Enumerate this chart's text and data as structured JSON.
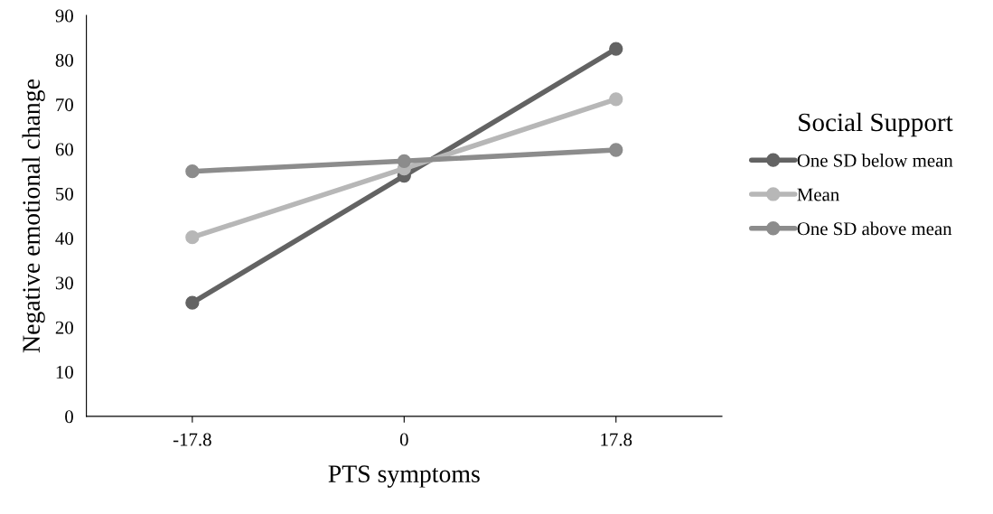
{
  "chart_data": {
    "type": "line",
    "xlabel": "PTS symptoms",
    "ylabel": "Negative emotional change",
    "legend_title": "Social Support",
    "categories": [
      "-17.8",
      "0",
      "17.8"
    ],
    "series": [
      {
        "name": "One SD below mean",
        "color": "#636363",
        "values": [
          25.5,
          54.0,
          82.5
        ]
      },
      {
        "name": "Mean",
        "color": "#b7b7b7",
        "values": [
          40.2,
          55.6,
          71.2
        ]
      },
      {
        "name": "One SD above mean",
        "color": "#8c8c8c",
        "values": [
          55.0,
          57.3,
          59.8
        ]
      }
    ],
    "ylim": [
      0,
      90
    ],
    "yticks": [
      0,
      10,
      20,
      30,
      40,
      50,
      60,
      70,
      80,
      90
    ],
    "grid": false,
    "legend": "right",
    "marker": "circle",
    "line_style": "solid"
  }
}
